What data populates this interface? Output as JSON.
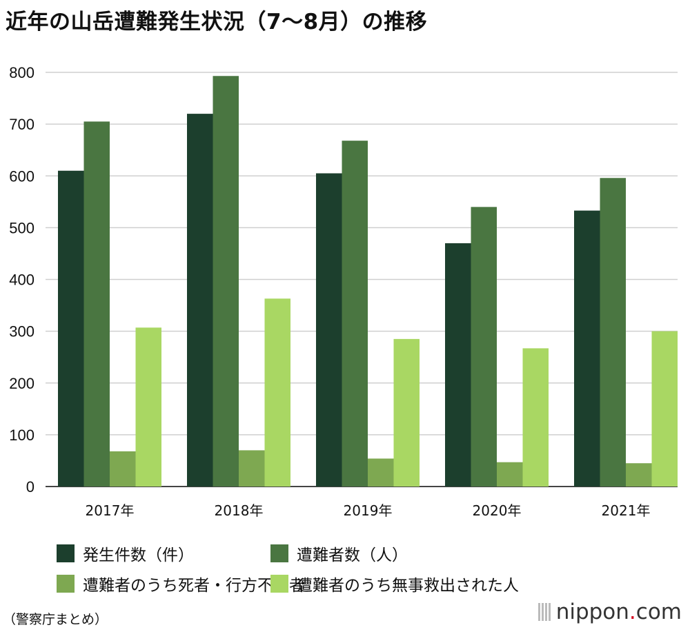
{
  "title": "近年の山岳遭難発生状況（7〜8月）の推移",
  "source": "（警察庁まとめ）",
  "brand": {
    "prefix": "nippon",
    "dot": ".",
    "suffix": "com"
  },
  "chart_data": {
    "type": "bar",
    "categories": [
      "2017年",
      "2018年",
      "2019年",
      "2020年",
      "2021年"
    ],
    "series": [
      {
        "name": "発生件数（件）",
        "color": "#1c3f2d",
        "values": [
          610,
          720,
          605,
          470,
          533
        ]
      },
      {
        "name": "遭難者数（人）",
        "color": "#4a7641",
        "values": [
          705,
          793,
          668,
          540,
          596
        ]
      },
      {
        "name": "遭難者のうち死者・行方不明者",
        "color": "#7ea851",
        "values": [
          68,
          70,
          54,
          47,
          45
        ]
      },
      {
        "name": "遭難者のうち無事救出された人",
        "color": "#a9d763",
        "values": [
          307,
          363,
          285,
          267,
          300
        ]
      }
    ],
    "ylim": [
      0,
      800
    ],
    "yticks": [
      0,
      100,
      200,
      300,
      400,
      500,
      600,
      700,
      800
    ],
    "grid": true,
    "legend_position": "bottom"
  }
}
